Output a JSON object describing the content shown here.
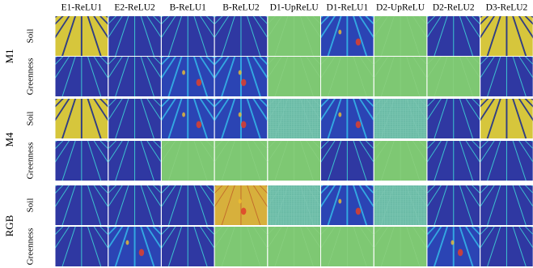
{
  "columns": [
    "E1-ReLU1",
    "E2-ReLU2",
    "B-ReLU1",
    "B-ReLU2",
    "D1-UpReLU",
    "D1-ReLU1",
    "D2-UpReLU",
    "D2-ReLU2",
    "D3-ReLU2"
  ],
  "groups": [
    {
      "label": "M1",
      "rows": [
        "Soil",
        "Greenness"
      ]
    },
    {
      "label": "M4",
      "rows": [
        "Soil",
        "Greenness"
      ]
    },
    {
      "label": "RGB",
      "rows": [
        "Soil",
        "Greenness"
      ]
    }
  ]
}
